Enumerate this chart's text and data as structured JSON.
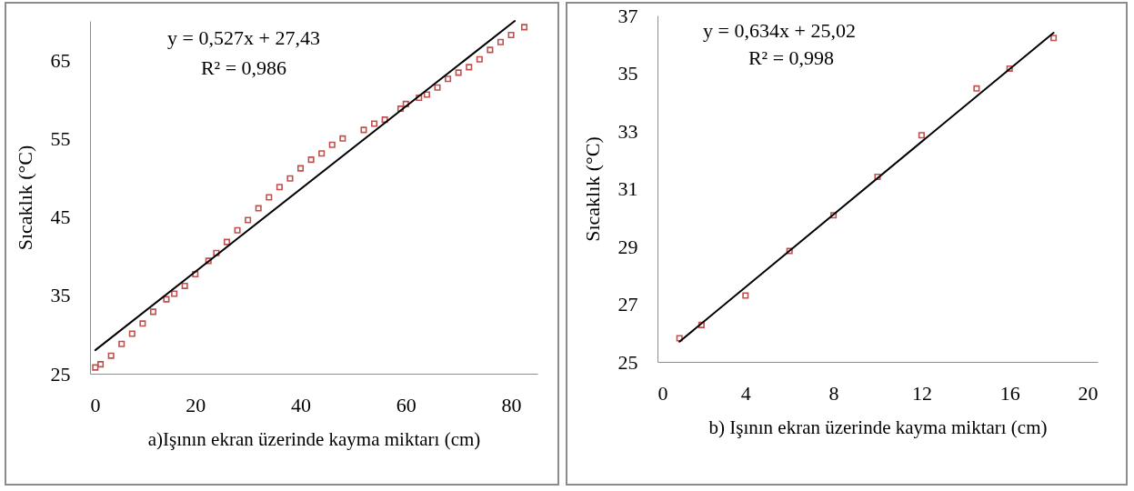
{
  "chart_data": [
    {
      "type": "scatter",
      "xlabel": "a)Işının ekran üzerinde kayma miktarı (cm)",
      "ylabel": "Sıcaklık (°C)",
      "xlim": [
        0,
        85
      ],
      "ylim": [
        25,
        70
      ],
      "xticks": [
        0,
        20,
        40,
        60,
        80
      ],
      "yticks": [
        25,
        35,
        45,
        55,
        65
      ],
      "grid": false,
      "annotations": [
        "y = 0,527x + 27,43",
        "R² = 0,986"
      ],
      "series": [
        {
          "marker": "square",
          "color": "#c0504d",
          "x": [
            1,
            2,
            4,
            6,
            8,
            10,
            12,
            14.5,
            16,
            18,
            20,
            22.5,
            24,
            26,
            28,
            30,
            32,
            34,
            36,
            38,
            40,
            42,
            44,
            46,
            48,
            52,
            54,
            56,
            59,
            60,
            62.5,
            64,
            66,
            68,
            70,
            72,
            74,
            76,
            78,
            80,
            82.5
          ],
          "values": [
            25.8,
            26.2,
            27.3,
            28.8,
            30.1,
            31.4,
            32.9,
            34.5,
            35.2,
            36.2,
            37.7,
            39.4,
            40.4,
            41.8,
            43.3,
            44.6,
            46.1,
            47.5,
            48.8,
            49.9,
            51.2,
            52.3,
            53.1,
            54.2,
            55.0,
            56.1,
            56.9,
            57.4,
            58.8,
            59.4,
            60.2,
            60.6,
            61.5,
            62.6,
            63.4,
            64.1,
            65.1,
            66.3,
            67.3,
            68.2,
            69.2
          ]
        },
        {
          "type": "line",
          "color": "#000000",
          "x": [
            1,
            80.7
          ],
          "values": [
            28.0,
            70.0
          ]
        }
      ]
    },
    {
      "type": "scatter",
      "xlabel": "b) Işının ekran üzerinde kayma miktarı (cm)",
      "ylabel": "Sıcaklık (°C)",
      "xlim": [
        0,
        20
      ],
      "ylim": [
        25,
        37
      ],
      "xticks": [
        0,
        4,
        8,
        12,
        16,
        20
      ],
      "yticks": [
        25,
        27,
        29,
        31,
        33,
        35,
        37
      ],
      "grid": false,
      "annotations": [
        "y = 0,634x + 25,02",
        "R² = 0,998"
      ],
      "series": [
        {
          "marker": "square",
          "color": "#c0504d",
          "x": [
            1,
            2,
            4,
            6,
            8,
            10,
            12,
            14.5,
            16,
            18
          ],
          "values": [
            25.82,
            26.28,
            27.3,
            28.84,
            30.08,
            31.41,
            32.85,
            34.47,
            35.16,
            36.22
          ]
        },
        {
          "type": "line",
          "color": "#000000",
          "x": [
            1,
            18
          ],
          "values": [
            25.7,
            36.4
          ]
        }
      ]
    }
  ]
}
